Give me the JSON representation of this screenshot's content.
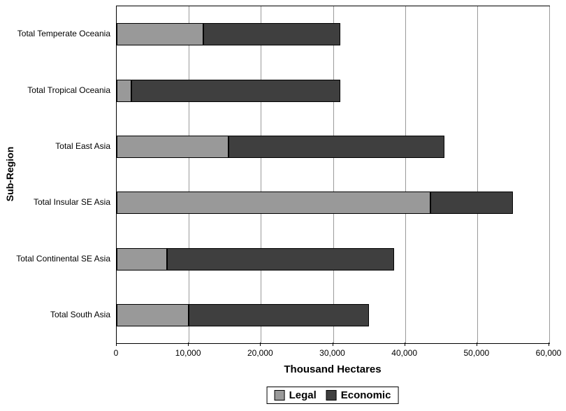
{
  "chart_data": {
    "type": "bar",
    "orientation": "horizontal",
    "stacked": true,
    "title": "",
    "xlabel": "Thousand Hectares",
    "ylabel": "Sub-Region",
    "xlim": [
      0,
      60000
    ],
    "xticks": [
      0,
      10000,
      20000,
      30000,
      40000,
      50000,
      60000
    ],
    "xtick_labels": [
      "0",
      "10,000",
      "20,000",
      "30,000",
      "40,000",
      "50,000",
      "60,000"
    ],
    "grid": true,
    "legend_position": "bottom",
    "categories": [
      "Total Temperate Oceania",
      "Total Tropical Oceania",
      "Total East Asia",
      "Total Insular SE Asia",
      "Total Continental SE Asia",
      "Total South Asia"
    ],
    "series": [
      {
        "name": "Legal",
        "color": "#999999",
        "values": [
          12000,
          2000,
          15500,
          43500,
          7000,
          10000
        ]
      },
      {
        "name": "Economic",
        "color": "#3f3f3f",
        "values": [
          19000,
          29000,
          30000,
          11500,
          31500,
          25000
        ]
      }
    ]
  }
}
